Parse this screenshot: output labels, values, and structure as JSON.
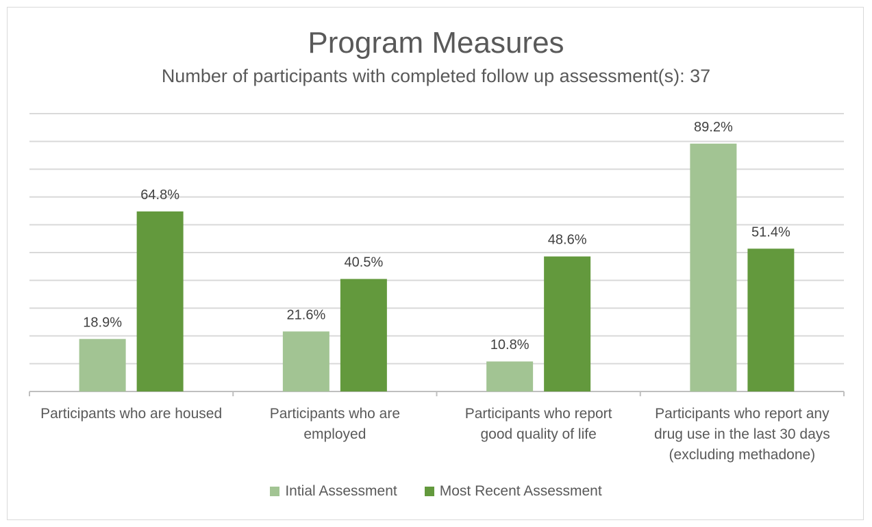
{
  "chart_data": {
    "type": "bar",
    "title": "Program Measures",
    "subtitle": "Number of participants with completed follow up assessment(s): 37",
    "categories": [
      "Participants who are housed",
      "Participants who are employed",
      "Participants who report good quality of life",
      "Participants who report any drug use in the last 30 days (excluding methadone)"
    ],
    "category_lines": [
      [
        "Participants who are housed"
      ],
      [
        "Participants who are",
        "employed"
      ],
      [
        "Participants who report",
        "good quality of life"
      ],
      [
        "Participants who report any",
        "drug use in the last 30 days",
        "(excluding methadone)"
      ]
    ],
    "series": [
      {
        "name": "Intial Assessment",
        "values": [
          18.9,
          21.6,
          10.8,
          89.2
        ],
        "labels": [
          "18.9%",
          "21.6%",
          "10.8%",
          "89.2%"
        ],
        "color": "#a2c493"
      },
      {
        "name": "Most Recent Assessment",
        "values": [
          64.8,
          40.5,
          48.6,
          51.4
        ],
        "labels": [
          "64.8%",
          "40.5%",
          "48.6%",
          "51.4%"
        ],
        "color": "#63993d"
      }
    ],
    "ylim": [
      0,
      100
    ],
    "grid": true,
    "legend_position": "bottom"
  }
}
